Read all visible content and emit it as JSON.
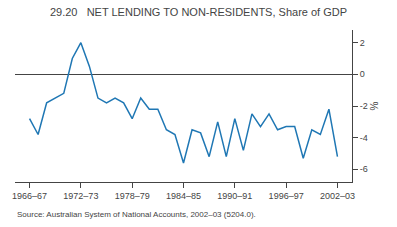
{
  "chart_data": {
    "type": "line",
    "title": "29.20   NET LENDING TO NON-RESIDENTS, Share of GDP",
    "y_label": "%",
    "annotations": [
      "Source: Australian System of National Accounts, 2002–03 (5204.0)."
    ],
    "x": [
      1966.5,
      1967.5,
      1968.5,
      1969.5,
      1970.5,
      1971.5,
      1972.5,
      1973.5,
      1974.5,
      1975.5,
      1976.5,
      1977.5,
      1978.5,
      1979.5,
      1980.5,
      1981.5,
      1982.5,
      1983.5,
      1984.5,
      1985.5,
      1986.5,
      1987.5,
      1988.5,
      1989.5,
      1990.5,
      1991.5,
      1992.5,
      1993.5,
      1994.5,
      1995.5,
      1996.5,
      1997.5,
      1998.5,
      1999.5,
      2000.5,
      2001.5,
      2002.5
    ],
    "values": [
      -2.8,
      -3.8,
      -1.8,
      -1.5,
      -1.2,
      1.0,
      2.0,
      0.5,
      -1.5,
      -1.8,
      -1.5,
      -1.8,
      -2.8,
      -1.5,
      -2.2,
      -2.2,
      -3.5,
      -3.8,
      -5.6,
      -3.5,
      -3.7,
      -5.2,
      -3.0,
      -5.2,
      -2.8,
      -4.8,
      -2.5,
      -3.3,
      -2.5,
      -3.5,
      -3.3,
      -3.3,
      -5.3,
      -3.5,
      -3.8,
      -2.2,
      -5.2
    ],
    "xlim": [
      1964.8,
      2004.2
    ],
    "xticks": [
      {
        "value": 1966.5,
        "label": "1966–67"
      },
      {
        "value": 1972.5,
        "label": "1972–73"
      },
      {
        "value": 1978.5,
        "label": "1978–79"
      },
      {
        "value": 1984.5,
        "label": "1984–85"
      },
      {
        "value": 1990.5,
        "label": "1990–91"
      },
      {
        "value": 1996.5,
        "label": "1996–97"
      },
      {
        "value": 2002.5,
        "label": "2002–03"
      }
    ],
    "ylim": [
      -6.8,
      2.8
    ],
    "yticks": [
      -6,
      -4,
      -2,
      0,
      2
    ],
    "grid": false
  }
}
